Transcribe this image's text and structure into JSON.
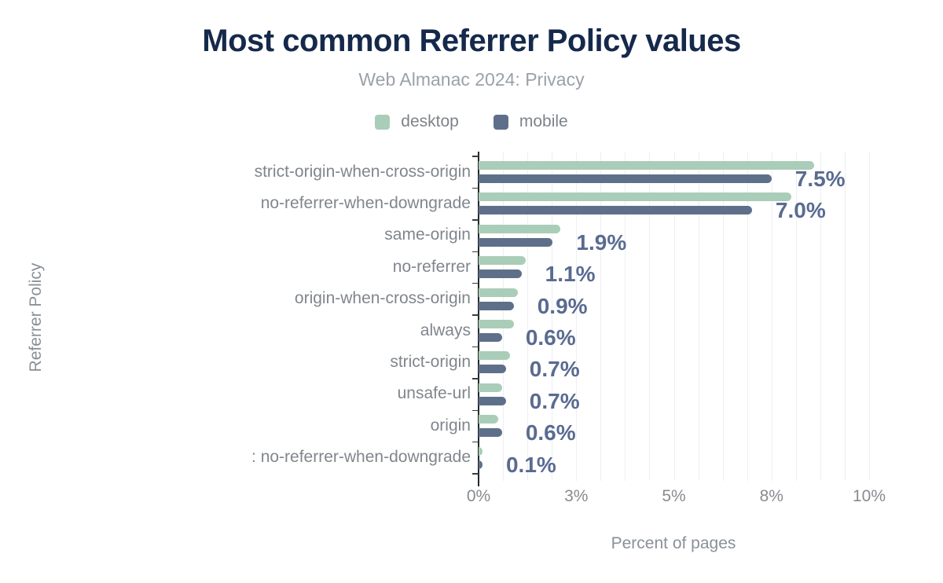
{
  "header": {
    "title": "Most common Referrer Policy values",
    "subtitle": "Web Almanac 2024: Privacy"
  },
  "colors": {
    "desktop": "#a9cdb8",
    "mobile": "#5e7089",
    "title": "#15294b",
    "subtitle": "#9ba1a9",
    "category_text": "#81868d",
    "tick_text": "#878b91",
    "value_label": "#5a6b91",
    "axis_line": "#26282b",
    "gridline": "#edeff3"
  },
  "chart_data": {
    "type": "bar",
    "orientation": "horizontal",
    "title": "Most common Referrer Policy values",
    "subtitle": "Web Almanac 2024: Privacy",
    "xlabel": "Percent of pages",
    "ylabel": "Referrer Policy",
    "xlim": [
      0,
      10.5
    ],
    "grid": "minor-vertical",
    "legend_position": "top",
    "x_ticks": [
      {
        "value": 0,
        "label": "0%"
      },
      {
        "value": 2.5,
        "label": "3%"
      },
      {
        "value": 5,
        "label": "5%"
      },
      {
        "value": 7.5,
        "label": "8%"
      },
      {
        "value": 10,
        "label": "10%"
      }
    ],
    "categories": [
      "strict-origin-when-cross-origin",
      "no-referrer-when-downgrade",
      "same-origin",
      "no-referrer",
      "origin-when-cross-origin",
      "always",
      "strict-origin",
      "unsafe-url",
      "origin",
      ": no-referrer-when-downgrade"
    ],
    "series": [
      {
        "name": "desktop",
        "values": [
          8.6,
          8.0,
          2.1,
          1.2,
          1.0,
          0.9,
          0.8,
          0.6,
          0.5,
          0.1
        ]
      },
      {
        "name": "mobile",
        "values": [
          7.5,
          7.0,
          1.9,
          1.1,
          0.9,
          0.6,
          0.7,
          0.7,
          0.6,
          0.1
        ]
      }
    ],
    "value_labels": [
      "7.5%",
      "7.0%",
      "1.9%",
      "1.1%",
      "0.9%",
      "0.6%",
      "0.7%",
      "0.7%",
      "0.6%",
      "0.1%"
    ]
  }
}
